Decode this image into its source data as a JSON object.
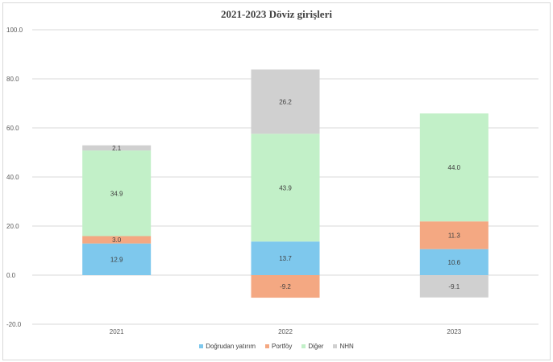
{
  "chart_data": {
    "type": "bar",
    "stacked": true,
    "title": "2021-2023 Döviz girişleri",
    "categories": [
      "2021",
      "2022",
      "2023"
    ],
    "ylim": [
      -20,
      100
    ],
    "yticks": [
      "-20.0",
      "0.0",
      "20.0",
      "40.0",
      "60.0",
      "80.0",
      "100.0"
    ],
    "ytick_values": [
      -20,
      0,
      20,
      40,
      60,
      80,
      100
    ],
    "grid": true,
    "legend_position": "bottom",
    "series": [
      {
        "name": "Doğrudan yatırım",
        "color": "#7ec8ed",
        "values": [
          12.9,
          13.7,
          10.6
        ],
        "labels": [
          "12.9",
          "13.7",
          "10.6"
        ]
      },
      {
        "name": "Portföy",
        "color": "#f4a882",
        "values": [
          3.0,
          -9.2,
          11.3
        ],
        "labels": [
          "3.0",
          "-9.2",
          "11.3"
        ]
      },
      {
        "name": "Diğer",
        "color": "#c2f0c8",
        "values": [
          34.9,
          43.9,
          44.0
        ],
        "labels": [
          "34.9",
          "43.9",
          "44.0"
        ]
      },
      {
        "name": "NHN",
        "color": "#d0d0d0",
        "values": [
          2.1,
          26.2,
          -9.1
        ],
        "labels": [
          "2.1",
          "26.2",
          "-9.1"
        ]
      }
    ]
  }
}
